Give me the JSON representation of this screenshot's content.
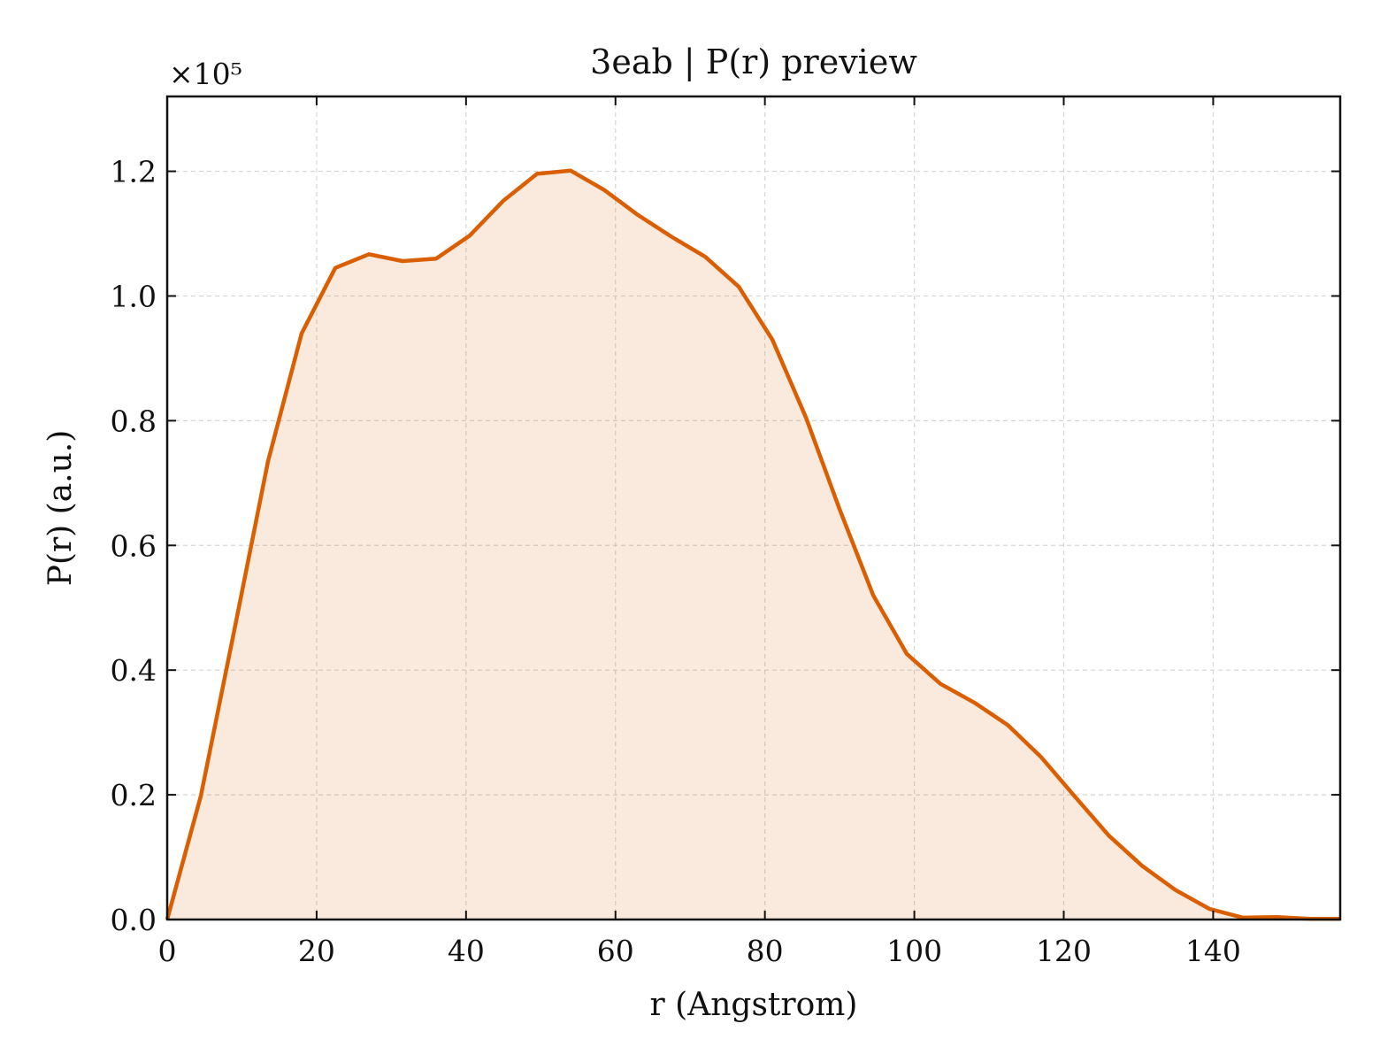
{
  "chart_data": {
    "type": "area",
    "title": "3eab | P(r) preview",
    "xlabel": "r (Angstrom)",
    "ylabel": "P(r) (a.u.)",
    "y_multiplier_label": "×10⁵",
    "y_multiplier": 100000,
    "xlim": [
      0,
      157
    ],
    "ylim": [
      0,
      132000
    ],
    "x_ticks": [
      0,
      20,
      40,
      60,
      80,
      100,
      120,
      140
    ],
    "x_tick_labels": [
      "0",
      "20",
      "40",
      "60",
      "80",
      "100",
      "120",
      "140"
    ],
    "y_ticks": [
      0,
      20000,
      40000,
      60000,
      80000,
      100000,
      120000
    ],
    "y_tick_labels": [
      "0.0",
      "0.2",
      "0.4",
      "0.6",
      "0.8",
      "1.0",
      "1.2"
    ],
    "grid": true,
    "colors": {
      "line": "#d95f02",
      "fill": "#d95f02"
    },
    "series": [
      {
        "x": [
          0,
          4.5,
          9,
          13.5,
          18,
          22.5,
          27,
          31.5,
          36,
          40.5,
          45,
          49.5,
          54,
          58.5,
          63,
          67.5,
          72,
          76.5,
          81,
          85.5,
          90,
          94.5,
          99,
          103.5,
          108,
          112.5,
          117,
          121.5,
          126,
          130.5,
          135,
          139.5,
          144,
          148.5,
          153,
          157
        ],
        "y": [
          0,
          19800,
          46500,
          73500,
          94000,
          104500,
          106700,
          105600,
          106000,
          109700,
          115300,
          119600,
          120100,
          117000,
          113000,
          109500,
          106300,
          101500,
          93000,
          80500,
          65800,
          52000,
          42600,
          37800,
          34800,
          31200,
          26000,
          19700,
          13500,
          8600,
          4700,
          1700,
          300,
          400,
          100,
          100
        ]
      }
    ]
  }
}
